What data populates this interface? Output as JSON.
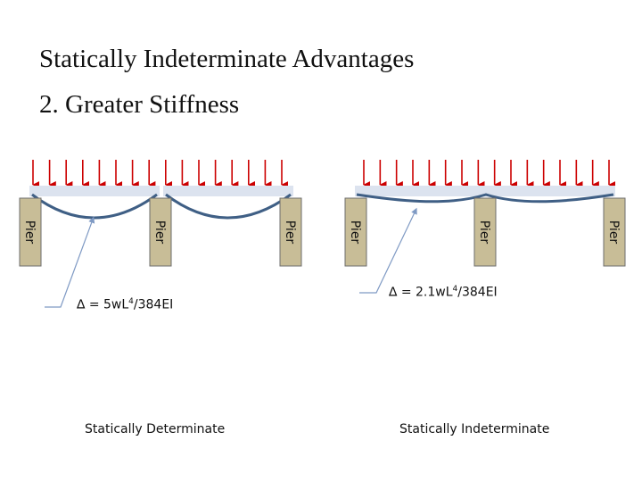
{
  "slide": {
    "title": "Statically Indeterminate Advantages",
    "subtitle": "2. Greater Stiffness"
  },
  "pier_label": "Pier",
  "left": {
    "formula_prefix": "∆ = 5wL",
    "formula_exp": "4",
    "formula_suffix": "/384EI",
    "caption": "Statically Determinate"
  },
  "right": {
    "formula_prefix": "∆ = 2.1wL",
    "formula_exp": "4",
    "formula_suffix": "/384EI",
    "caption": "Statically Indeterminate"
  },
  "colors": {
    "load_arrow": "#cc0000",
    "beam_fill": "#dce3ef",
    "deflected_line": "#3f5f85",
    "pier_fill": "#c8bd97",
    "pier_border": "#6d6d6d",
    "leader_line": "#7f9ac4"
  }
}
